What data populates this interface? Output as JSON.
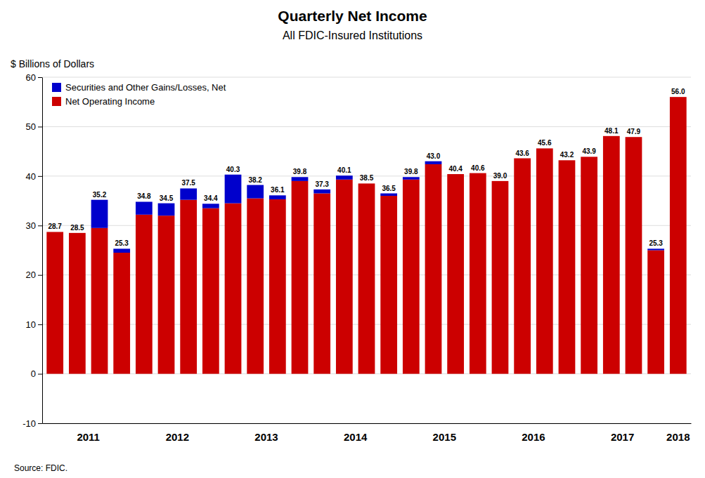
{
  "chart_data": {
    "type": "bar",
    "stacked": true,
    "title": "Quarterly Net Income",
    "subtitle": "All FDIC-Insured Institutions",
    "y_label": "$ Billions of Dollars",
    "source": "Source: FDIC.",
    "categories": [
      "2011",
      null,
      null,
      null,
      "2012",
      null,
      null,
      null,
      "2013",
      null,
      null,
      null,
      "2014",
      null,
      null,
      null,
      "2015",
      null,
      null,
      null,
      "2016",
      null,
      null,
      null,
      "2017",
      null,
      null,
      null,
      "2018"
    ],
    "series": [
      {
        "name": "Net Operating Income",
        "color": "#CC0000",
        "values": [
          28.7,
          28.5,
          29.5,
          24.5,
          32.2,
          32.0,
          35.2,
          33.5,
          34.5,
          35.5,
          35.3,
          39.0,
          36.5,
          39.3,
          38.5,
          36.0,
          39.3,
          42.4,
          40.4,
          40.6,
          39.0,
          43.6,
          45.6,
          43.2,
          43.9,
          48.1,
          47.9,
          25.0,
          56.0
        ]
      },
      {
        "name": "Securities and Other Gains/Losses, Net",
        "color": "#0000CC",
        "values": [
          0.0,
          0.0,
          5.7,
          0.8,
          2.6,
          2.5,
          2.3,
          0.9,
          5.8,
          2.7,
          0.8,
          0.8,
          0.8,
          0.8,
          0.0,
          0.5,
          0.5,
          0.6,
          0.0,
          0.0,
          0.0,
          0.0,
          0.0,
          0.0,
          0.0,
          0.0,
          0.0,
          0.3,
          0.0
        ]
      }
    ],
    "totals": [
      28.7,
      28.5,
      35.2,
      25.3,
      34.8,
      34.5,
      37.5,
      34.4,
      40.3,
      38.2,
      36.1,
      39.8,
      37.3,
      40.1,
      38.5,
      36.5,
      39.8,
      43.0,
      40.4,
      40.6,
      39.0,
      43.6,
      45.6,
      43.2,
      43.9,
      48.1,
      47.9,
      25.3,
      56.0
    ],
    "total_labels": [
      "28.7",
      "28.5",
      "35.2",
      "25.3",
      "34.8",
      "34.5",
      "37.5",
      "34.4",
      "40.3",
      "38.2",
      "36.1",
      "39.8",
      "37.3",
      "40.1",
      "38.5",
      "36.5",
      "39.8",
      "43.0",
      "40.4",
      "40.6",
      "39.0",
      "43.6",
      "45.6",
      "43.2",
      "43.9",
      "48.1",
      "47.9",
      "25.3",
      "56.0"
    ],
    "data_labels": true,
    "ylim": [
      -10,
      60
    ],
    "yticks": [
      -10,
      0,
      10,
      20,
      30,
      40,
      50,
      60
    ],
    "grid": true,
    "legend": "upper left"
  }
}
